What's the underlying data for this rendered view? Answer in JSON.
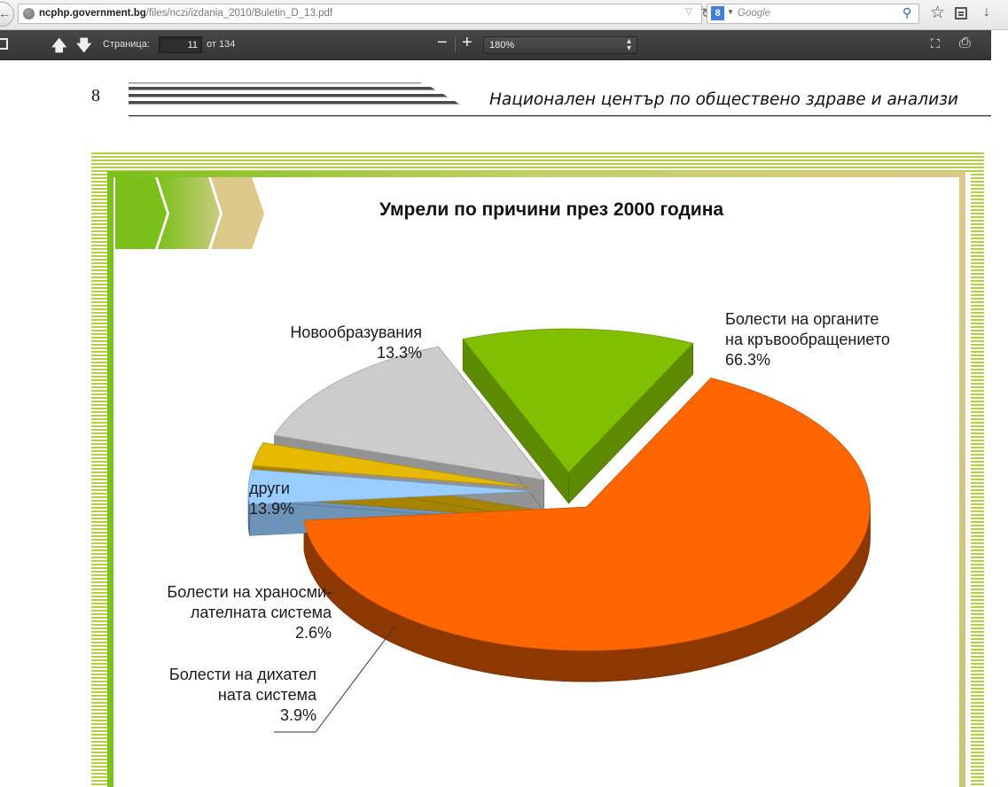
{
  "browser": {
    "url_host": "ncphp.government.bg",
    "url_path": "/files/nczi/izdania_2010/Buletin_D_13.pdf",
    "search_placeholder": "Google",
    "search_engine_badge": "8"
  },
  "pdf_toolbar": {
    "page_label": "Страница:",
    "page_current": "11",
    "page_total": "от 134",
    "zoom": "180%"
  },
  "page": {
    "number": "8",
    "header": "Национален център по обществено здраве и анализи"
  },
  "chart_data": {
    "type": "pie",
    "title": "Умрели по причини през 2000 година",
    "slices": [
      {
        "name": "Болести на органите на кръвообращението",
        "label_lines": [
          "Болести на органите",
          "на кръвообращението"
        ],
        "value": 66.3,
        "value_text": "66.3%",
        "color": "#ff6600"
      },
      {
        "name": "Болести на дихателната система",
        "label_lines": [
          "Болести на дихател",
          "ната система"
        ],
        "value": 3.9,
        "value_text": "3.9%",
        "color": "#99ccff"
      },
      {
        "name": "Болести на храносмилателната система",
        "label_lines": [
          "Болести на храносми-",
          "лателната система"
        ],
        "value": 2.6,
        "value_text": "2.6%",
        "color": "#e6b800"
      },
      {
        "name": "други",
        "label_lines": [
          "други"
        ],
        "value": 13.9,
        "value_text": "13.9%",
        "color": "#cccccc"
      },
      {
        "name": "Новообразувания",
        "label_lines": [
          "Новообразувания"
        ],
        "value": 13.3,
        "value_text": "13.3%",
        "color": "#80c000"
      }
    ],
    "style": "3d-exploded",
    "legend": "none (direct labels)"
  }
}
